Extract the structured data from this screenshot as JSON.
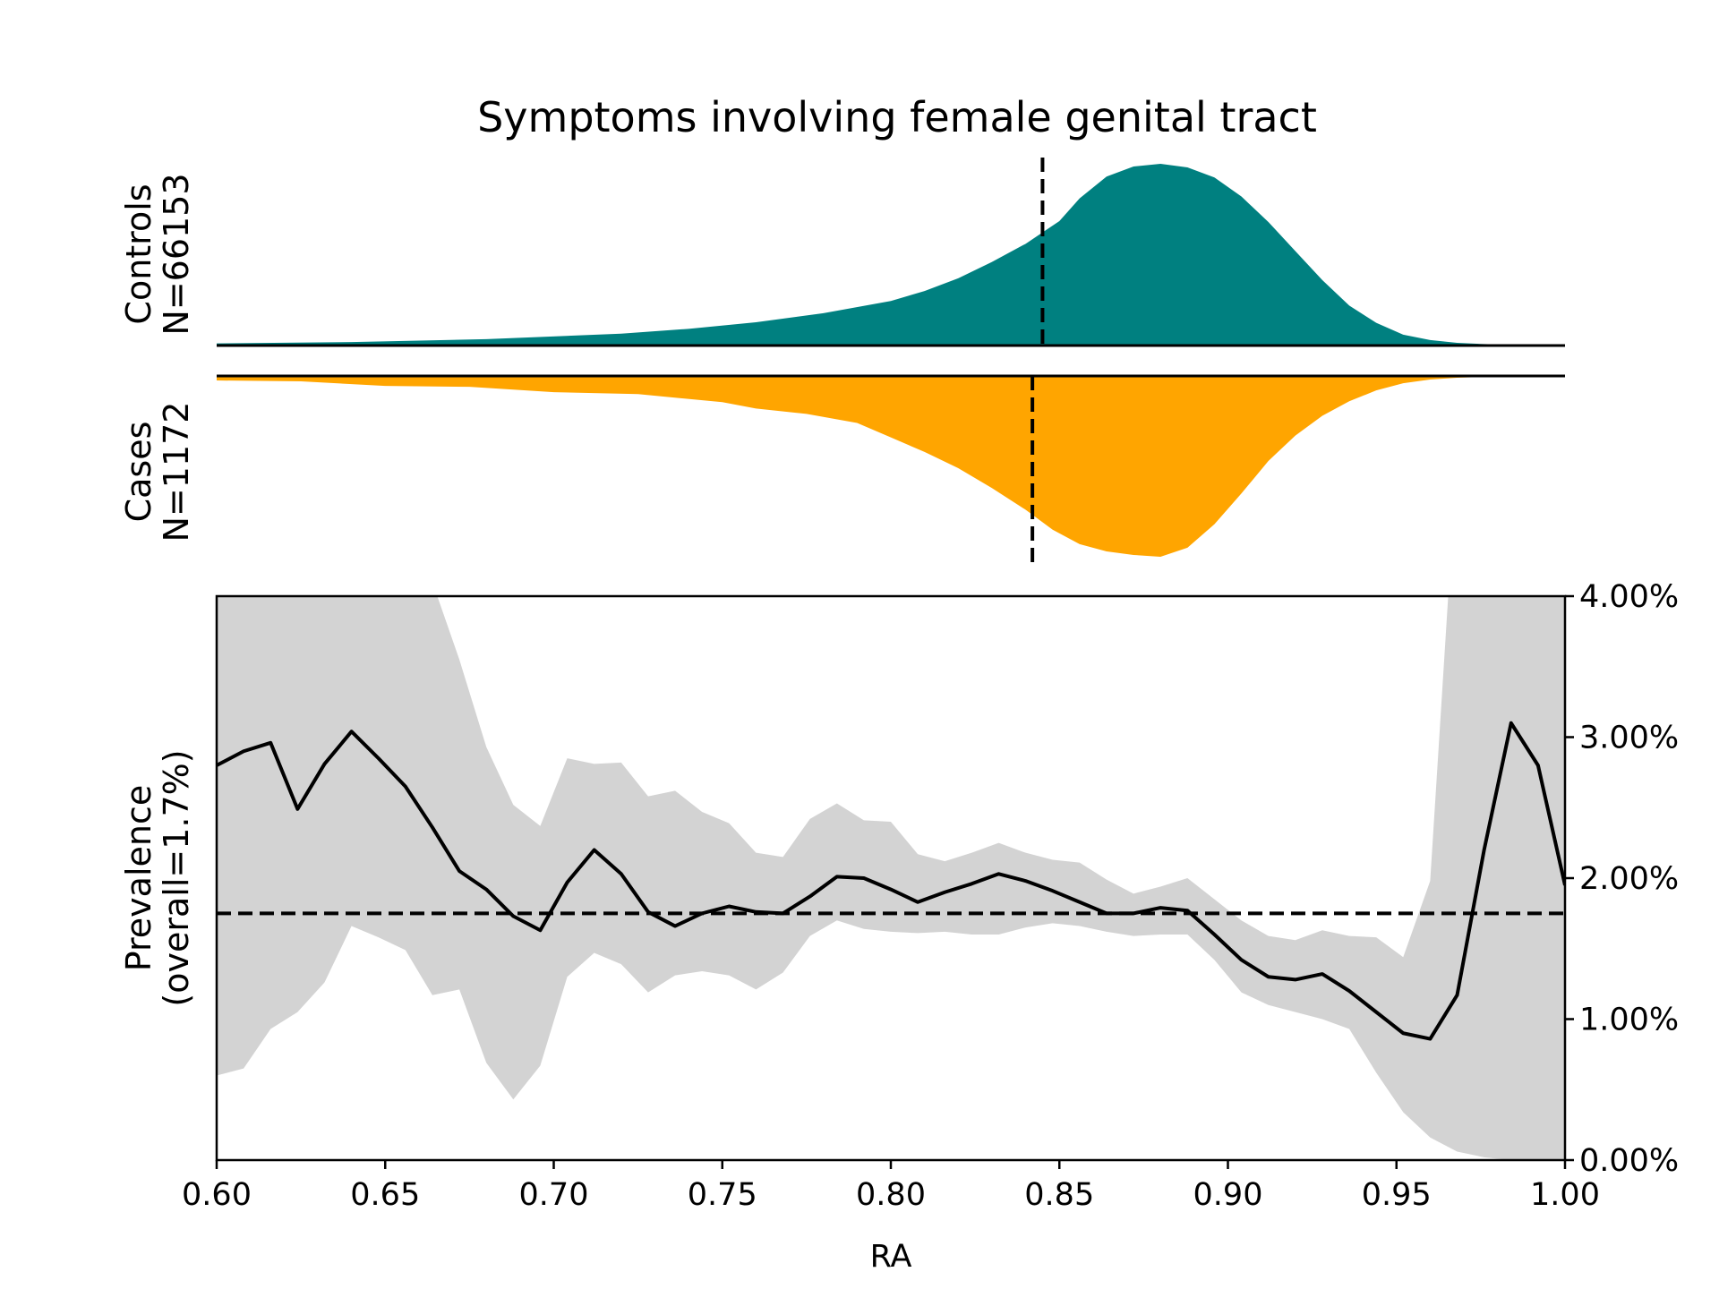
{
  "chart_data": [
    {
      "type": "area",
      "panel": "controls-density",
      "title": "Symptoms involving female genital tract",
      "ylabel_line1": "Controls",
      "ylabel_line2": "N=66153",
      "color": "#008080",
      "median": 0.845,
      "xlim": [
        0.6,
        1.0
      ],
      "x": [
        0.6,
        0.64,
        0.68,
        0.72,
        0.74,
        0.76,
        0.78,
        0.8,
        0.81,
        0.82,
        0.83,
        0.84,
        0.85,
        0.856,
        0.864,
        0.872,
        0.88,
        0.888,
        0.896,
        0.904,
        0.912,
        0.92,
        0.928,
        0.936,
        0.944,
        0.952,
        0.96,
        0.968,
        0.976,
        0.984,
        0.992,
        1.0
      ],
      "y": [
        0.012,
        0.019,
        0.035,
        0.065,
        0.092,
        0.128,
        0.178,
        0.245,
        0.3,
        0.37,
        0.46,
        0.56,
        0.685,
        0.81,
        0.93,
        0.985,
        1.0,
        0.98,
        0.925,
        0.82,
        0.68,
        0.52,
        0.36,
        0.22,
        0.125,
        0.06,
        0.03,
        0.015,
        0.008,
        0.004,
        0.002,
        0.001
      ]
    },
    {
      "type": "area",
      "panel": "cases-density",
      "ylabel_line1": "Cases",
      "ylabel_line2": "N=1172",
      "color": "#FFA500",
      "median": 0.842,
      "xlim": [
        0.6,
        1.0
      ],
      "x": [
        0.6,
        0.625,
        0.65,
        0.675,
        0.7,
        0.725,
        0.75,
        0.76,
        0.775,
        0.79,
        0.8,
        0.81,
        0.82,
        0.83,
        0.84,
        0.848,
        0.856,
        0.864,
        0.872,
        0.88,
        0.888,
        0.896,
        0.904,
        0.912,
        0.92,
        0.928,
        0.936,
        0.944,
        0.952,
        0.96,
        0.968,
        0.976,
        0.984,
        0.992,
        1.0
      ],
      "y": [
        0.025,
        0.03,
        0.055,
        0.06,
        0.09,
        0.1,
        0.145,
        0.18,
        0.21,
        0.26,
        0.34,
        0.42,
        0.51,
        0.62,
        0.74,
        0.85,
        0.93,
        0.97,
        0.99,
        1.0,
        0.95,
        0.82,
        0.65,
        0.47,
        0.33,
        0.22,
        0.14,
        0.08,
        0.04,
        0.02,
        0.01,
        0.005,
        0.003,
        0.002,
        0.001
      ]
    },
    {
      "type": "line",
      "panel": "prevalence",
      "xlabel": "RA",
      "ylabel_line1": "Prevalence",
      "ylabel_line2": "(overall=1.7%)",
      "xlim": [
        0.6,
        1.0
      ],
      "ylim": [
        0.0,
        0.04
      ],
      "x_ticks": [
        "0.60",
        "0.65",
        "0.70",
        "0.75",
        "0.80",
        "0.85",
        "0.90",
        "0.95",
        "1.00"
      ],
      "y_ticks": [
        "0.00%",
        "1.00%",
        "2.00%",
        "3.00%",
        "4.00%"
      ],
      "overall": 0.0175,
      "x": [
        0.6,
        0.608,
        0.616,
        0.624,
        0.632,
        0.64,
        0.648,
        0.656,
        0.664,
        0.672,
        0.68,
        0.688,
        0.696,
        0.704,
        0.712,
        0.72,
        0.728,
        0.736,
        0.744,
        0.752,
        0.76,
        0.768,
        0.776,
        0.784,
        0.792,
        0.8,
        0.808,
        0.816,
        0.824,
        0.832,
        0.84,
        0.848,
        0.856,
        0.864,
        0.872,
        0.88,
        0.888,
        0.896,
        0.904,
        0.912,
        0.92,
        0.928,
        0.936,
        0.944,
        0.952,
        0.96,
        0.968,
        0.976,
        0.984,
        0.992,
        1.0
      ],
      "y": [
        0.028,
        0.029,
        0.0296,
        0.0249,
        0.0281,
        0.0304,
        0.0285,
        0.0265,
        0.0236,
        0.0205,
        0.0192,
        0.0173,
        0.0163,
        0.0197,
        0.022,
        0.0203,
        0.0176,
        0.0166,
        0.0175,
        0.018,
        0.0176,
        0.0175,
        0.0187,
        0.0201,
        0.02,
        0.0192,
        0.0183,
        0.019,
        0.0196,
        0.0203,
        0.0198,
        0.0191,
        0.0183,
        0.0175,
        0.0175,
        0.0179,
        0.0177,
        0.016,
        0.0142,
        0.013,
        0.0128,
        0.0132,
        0.012,
        0.0105,
        0.009,
        0.0086,
        0.0117,
        0.022,
        0.031,
        0.028,
        0.0195
      ],
      "ci_upper": [
        0.05,
        0.05,
        0.05,
        0.05,
        0.05,
        0.05,
        0.05,
        0.045,
        0.041,
        0.0355,
        0.0293,
        0.0252,
        0.0237,
        0.0285,
        0.0281,
        0.0282,
        0.0258,
        0.0262,
        0.0247,
        0.0239,
        0.0218,
        0.0215,
        0.0242,
        0.0253,
        0.0241,
        0.024,
        0.0217,
        0.0212,
        0.0218,
        0.0225,
        0.0218,
        0.0213,
        0.0211,
        0.0199,
        0.0189,
        0.0194,
        0.02,
        0.0185,
        0.017,
        0.0159,
        0.0156,
        0.0163,
        0.0159,
        0.0158,
        0.0144,
        0.0198,
        0.05,
        0.05,
        0.05,
        0.05,
        0.05
      ],
      "ci_lower": [
        0.006,
        0.0065,
        0.0093,
        0.0105,
        0.0126,
        0.0166,
        0.0158,
        0.0149,
        0.0117,
        0.0121,
        0.0069,
        0.0043,
        0.0067,
        0.013,
        0.0147,
        0.0139,
        0.0119,
        0.0131,
        0.0134,
        0.0131,
        0.0121,
        0.0133,
        0.0159,
        0.017,
        0.0164,
        0.0162,
        0.0161,
        0.0162,
        0.016,
        0.016,
        0.0165,
        0.0168,
        0.0166,
        0.0162,
        0.0159,
        0.016,
        0.016,
        0.0142,
        0.0119,
        0.011,
        0.0105,
        0.01,
        0.0093,
        0.0062,
        0.0034,
        0.0016,
        0.0006,
        0.0002,
        0.0,
        0.0,
        0.0
      ]
    }
  ]
}
